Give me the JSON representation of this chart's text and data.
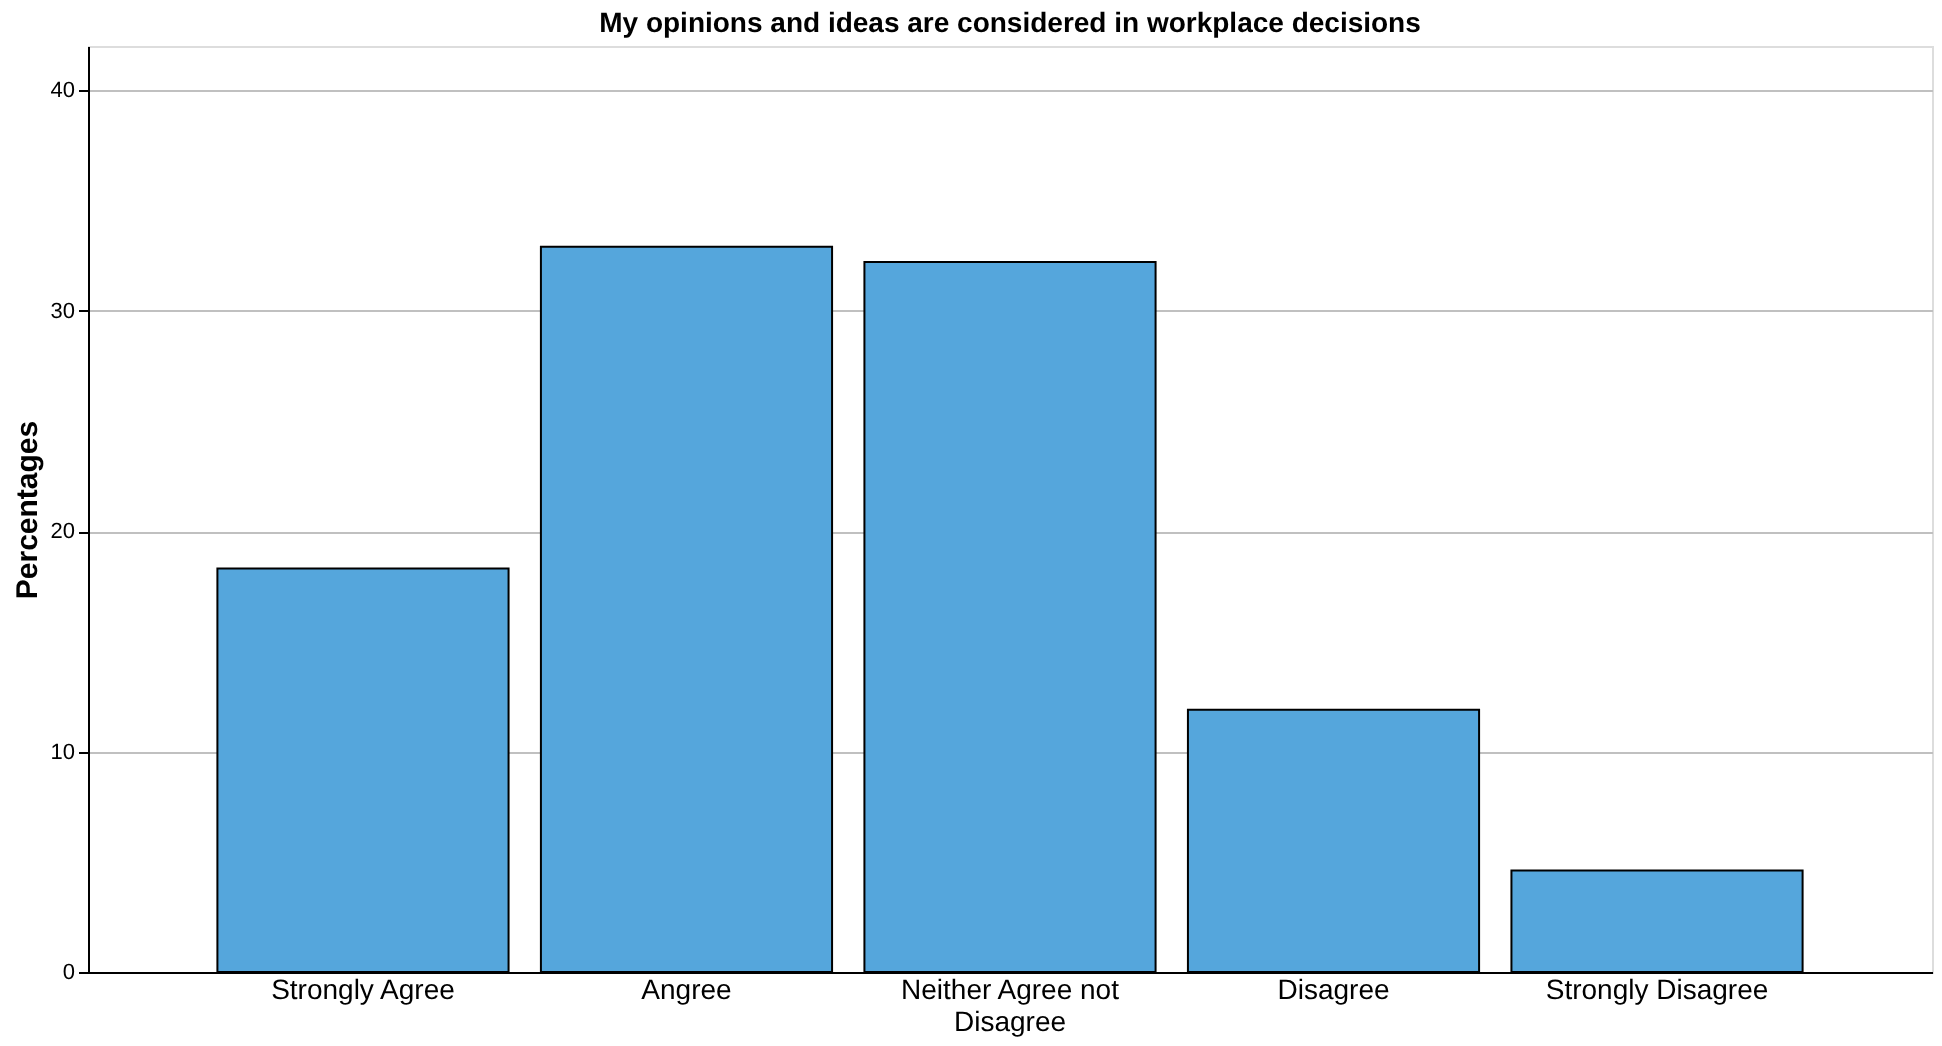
{
  "chart_data": {
    "type": "bar",
    "title": "My opinions and ideas are considered in workplace decisions",
    "ylabel": "Percentages",
    "categories": [
      "Strongly Agree",
      "Angree",
      "Neither Agree not Disagree",
      "Disagree",
      "Strongly Disagree"
    ],
    "values": [
      18.3,
      32.9,
      32.2,
      11.9,
      4.6
    ],
    "color": "#55a6dc",
    "ylim": [
      0,
      42
    ],
    "yticks": [
      0,
      10,
      20,
      30,
      40
    ],
    "grid": "y"
  }
}
